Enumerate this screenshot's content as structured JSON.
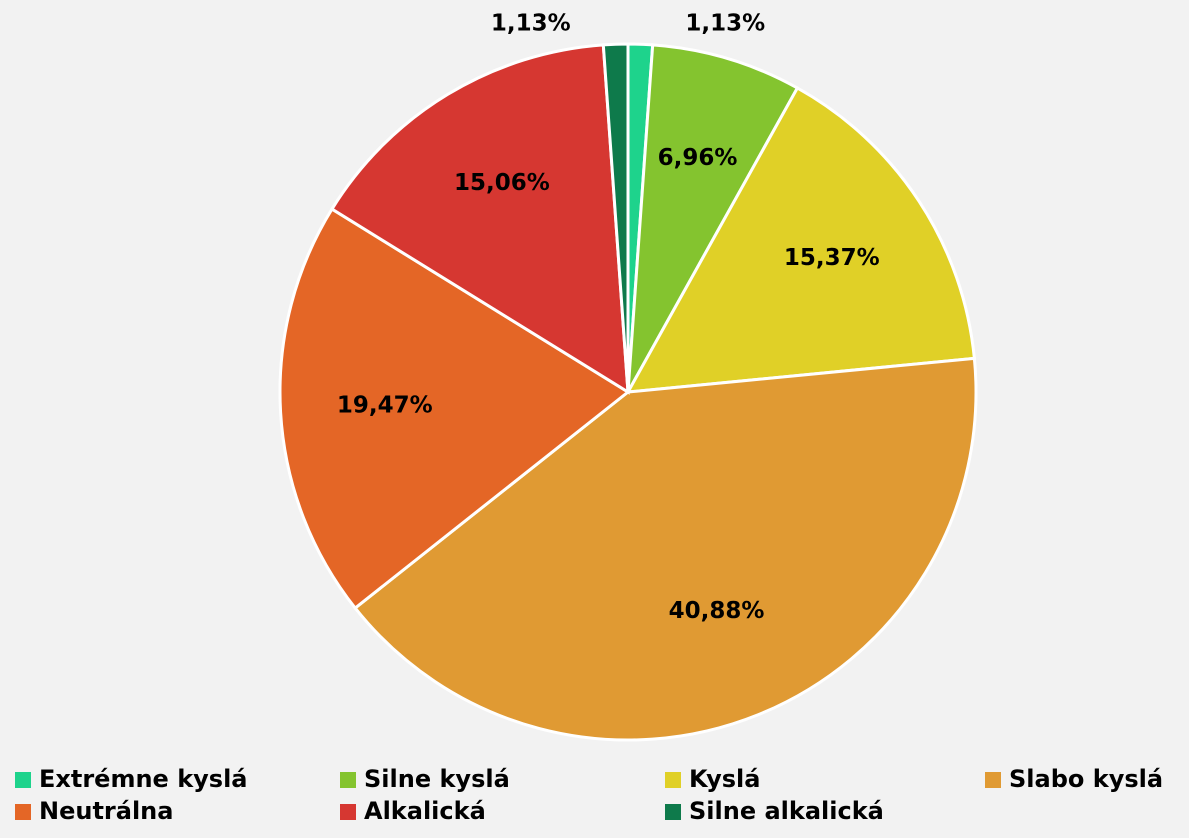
{
  "chart_data": {
    "type": "pie",
    "categories": [
      "Extrémne kyslá",
      "Silne kyslá",
      "Kyslá",
      "Slabo kyslá",
      "Neutrálna",
      "Alkalická",
      "Silne alkalická"
    ],
    "values": [
      1.13,
      6.96,
      15.37,
      40.88,
      19.47,
      15.06,
      1.13
    ],
    "value_labels": [
      "1,13%",
      "6,96%",
      "15,37%",
      "40,88%",
      "19,47%",
      "15,06%",
      "1,13%"
    ],
    "colors": [
      "#1ed38c",
      "#84c42f",
      "#e0d027",
      "#e09a33",
      "#e46626",
      "#d63731",
      "#0e7a4b"
    ],
    "legend": "bottom"
  }
}
